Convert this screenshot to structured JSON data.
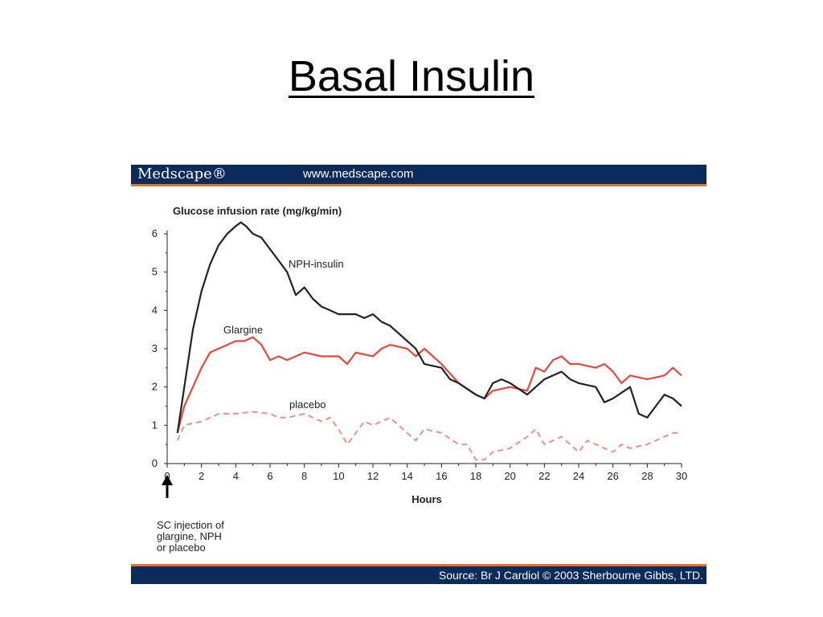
{
  "slide": {
    "title": "Basal Insulin"
  },
  "header": {
    "brand": "Medscape®",
    "url": "www.medscape.com"
  },
  "footer": {
    "source": "Source: Br J Cardiol © 2003 Sherbourne Gibbs, LTD."
  },
  "annotation": {
    "lines": [
      "SC injection of",
      "glargine, NPH",
      "or placebo"
    ]
  },
  "colors": {
    "banner": "#0b2b5c",
    "accent": "#e2722a",
    "nph": "#222222",
    "glargine": "#e8473c",
    "placebo": "#f09080"
  },
  "chart_data": {
    "type": "line",
    "title": "",
    "xlabel": "Hours",
    "ylabel": "Glucose infusion rate (mg/kg/min)",
    "xlim": [
      0,
      30
    ],
    "ylim": [
      0,
      6
    ],
    "xticks": [
      0,
      2,
      4,
      6,
      8,
      10,
      12,
      14,
      16,
      18,
      20,
      22,
      24,
      26,
      28,
      30
    ],
    "yticks": [
      0,
      1,
      2,
      3,
      4,
      5,
      6
    ],
    "grid": false,
    "legend": "inline labels",
    "series": [
      {
        "name": "NPH-insulin",
        "style": "solid",
        "x": [
          0.6,
          1.5,
          2,
          2.5,
          3,
          3.5,
          4,
          4.3,
          4.6,
          5,
          5.5,
          6,
          6.5,
          7,
          7.5,
          8,
          8.5,
          9,
          9.5,
          10,
          11,
          11.5,
          12,
          12.5,
          13,
          14,
          14.5,
          15,
          16,
          16.5,
          17,
          18,
          18.5,
          19,
          19.5,
          20,
          21,
          22,
          23,
          23.5,
          24,
          25,
          25.5,
          26,
          27,
          27.5,
          28,
          28.5,
          29,
          29.5,
          30
        ],
        "y": [
          0.8,
          3.5,
          4.5,
          5.2,
          5.7,
          6.0,
          6.2,
          6.3,
          6.2,
          6.0,
          5.9,
          5.6,
          5.3,
          5.0,
          4.4,
          4.6,
          4.3,
          4.1,
          4.0,
          3.9,
          3.9,
          3.8,
          3.9,
          3.7,
          3.6,
          3.2,
          3.0,
          2.6,
          2.5,
          2.2,
          2.1,
          1.8,
          1.7,
          2.1,
          2.2,
          2.1,
          1.8,
          2.2,
          2.4,
          2.2,
          2.1,
          2.0,
          1.6,
          1.7,
          2.0,
          1.3,
          1.2,
          1.5,
          1.8,
          1.7,
          1.5
        ]
      },
      {
        "name": "Glargine",
        "style": "solid",
        "x": [
          0.6,
          1,
          2,
          2.5,
          3,
          3.5,
          4,
          4.5,
          5,
          5.5,
          6,
          6.5,
          7,
          7.5,
          8,
          9,
          10,
          10.5,
          11,
          12,
          12.5,
          13,
          14,
          14.5,
          15,
          16,
          17,
          18,
          18.5,
          19,
          20,
          21,
          21.5,
          22,
          22.5,
          23,
          23.5,
          24,
          25,
          25.5,
          26,
          26.5,
          27,
          28,
          29,
          29.5,
          30
        ],
        "y": [
          0.8,
          1.5,
          2.5,
          2.9,
          3.0,
          3.1,
          3.2,
          3.2,
          3.3,
          3.1,
          2.7,
          2.8,
          2.7,
          2.8,
          2.9,
          2.8,
          2.8,
          2.6,
          2.9,
          2.8,
          3.0,
          3.1,
          3.0,
          2.8,
          3.0,
          2.6,
          2.1,
          1.8,
          1.7,
          1.9,
          2.0,
          1.9,
          2.5,
          2.4,
          2.7,
          2.8,
          2.6,
          2.6,
          2.5,
          2.6,
          2.4,
          2.1,
          2.3,
          2.2,
          2.3,
          2.5,
          2.3
        ]
      },
      {
        "name": "placebo",
        "style": "dashed",
        "x": [
          0.6,
          1,
          2,
          2.5,
          3,
          3.5,
          4,
          5,
          6,
          6.5,
          7,
          8,
          9,
          9.5,
          10,
          10.5,
          11,
          11.5,
          12,
          12.5,
          13,
          14,
          14.5,
          15,
          16,
          17,
          17.5,
          18,
          18.5,
          19,
          20,
          21,
          21.5,
          22,
          22.5,
          23,
          24,
          24.5,
          25,
          26,
          26.5,
          27,
          28,
          28.5,
          29,
          29.5,
          30
        ],
        "y": [
          0.6,
          1.0,
          1.1,
          1.2,
          1.3,
          1.3,
          1.3,
          1.35,
          1.3,
          1.2,
          1.2,
          1.3,
          1.1,
          1.2,
          0.9,
          0.5,
          0.8,
          1.1,
          1.0,
          1.1,
          1.2,
          0.8,
          0.6,
          0.9,
          0.8,
          0.5,
          0.5,
          0.1,
          0.1,
          0.3,
          0.4,
          0.7,
          0.9,
          0.5,
          0.6,
          0.7,
          0.3,
          0.6,
          0.5,
          0.3,
          0.5,
          0.4,
          0.5,
          0.6,
          0.7,
          0.8,
          0.8
        ]
      }
    ]
  }
}
